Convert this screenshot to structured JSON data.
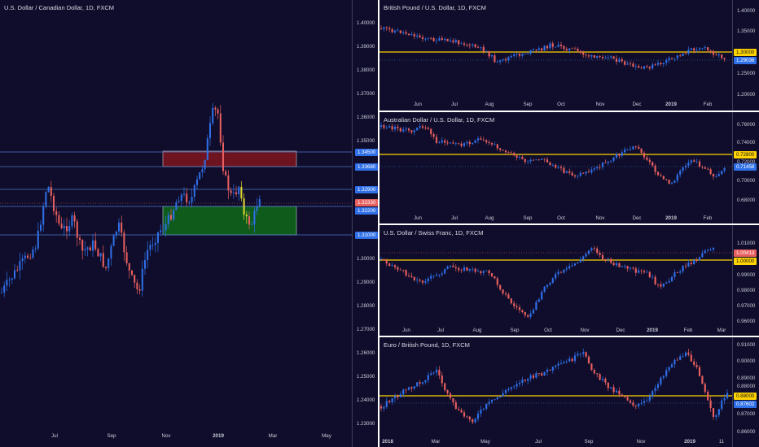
{
  "colors": {
    "background": "#0f0d2b",
    "candle_up": "#2f6fe8",
    "candle_down": "#e85f5f",
    "resistance_line": "#ffd400",
    "level_line": "#4d79c9",
    "sell_zone": "#6e1420",
    "buy_zone": "#0e5b1c",
    "highlight_candle": "#e0d830"
  },
  "panels": [
    {
      "id": "usdcad",
      "title": "U.S. Dollar / Canadian Dollar, 1D, FXCM",
      "price_labels": [
        "1.40000",
        "1.39000",
        "1.38000",
        "1.37000",
        "1.36000",
        "1.35000",
        "1.30000",
        "1.29000",
        "1.28000",
        "1.27000",
        "1.26000",
        "1.25000",
        "1.24000",
        "1.23000"
      ],
      "badges": [
        {
          "text": "1.34500",
          "style": "blue"
        },
        {
          "text": "1.33680",
          "style": "blue"
        },
        {
          "text": "1.32900",
          "style": "blue"
        },
        {
          "text": "1.32330",
          "style": "red"
        },
        {
          "text": "1.32200",
          "style": "blue"
        },
        {
          "text": "1.31000",
          "style": "blue"
        }
      ],
      "time_labels": [
        "Jul",
        "Sep",
        "Nov",
        "2019",
        "Mar",
        "May"
      ]
    },
    {
      "id": "gbpusd",
      "title": "British Pound / U.S. Dollar, 1D, FXCM",
      "price_labels": [
        "1.40000",
        "1.35000",
        "1.25000",
        "1.20000"
      ],
      "badges": [
        {
          "text": "1.30000",
          "style": "yellow"
        },
        {
          "text": "1.29036",
          "style": "blue"
        }
      ],
      "time_labels": [
        "Jun",
        "Jul",
        "Aug",
        "Sep",
        "Oct",
        "Nov",
        "Dec",
        "2019",
        "Feb"
      ]
    },
    {
      "id": "audusd",
      "title": "Australian Dollar / U.S. Dollar, 1D, FXCM",
      "price_labels": [
        "0.76000",
        "0.74000",
        "0.72000",
        "0.70000",
        "0.68000"
      ],
      "badges": [
        {
          "text": "0.72800",
          "style": "yellow"
        },
        {
          "text": "0.71458",
          "style": "blue"
        }
      ],
      "time_labels": [
        "Jun",
        "Jul",
        "Aug",
        "Sep",
        "Oct",
        "Nov",
        "Dec",
        "2019",
        "Feb"
      ]
    },
    {
      "id": "usdchf",
      "title": "U.S. Dollar / Swiss Franc, 1D, FXCM",
      "price_labels": [
        "1.01000",
        "0.99000",
        "0.98000",
        "0.97000",
        "0.96000"
      ],
      "badges": [
        {
          "text": "1.00413",
          "style": "red"
        },
        {
          "text": "1.00000",
          "style": "yellow"
        }
      ],
      "time_labels": [
        "Jun",
        "Jul",
        "Aug",
        "Sep",
        "Oct",
        "Nov",
        "Dec",
        "2019",
        "Feb",
        "Mar"
      ]
    },
    {
      "id": "eurgbp",
      "title": "Euro / British Pound, 1D, FXCM",
      "price_labels": [
        "0.91000",
        "0.90000",
        "0.89000",
        "0.88000",
        "0.87000",
        "0.86000"
      ],
      "badges": [
        {
          "text": "0.88000",
          "style": "yellow"
        },
        {
          "text": "0.87602",
          "style": "blue"
        }
      ],
      "time_labels": [
        "2018",
        "Mar",
        "May",
        "Jul",
        "Sep",
        "Nov",
        "2019",
        "11"
      ]
    }
  ]
}
